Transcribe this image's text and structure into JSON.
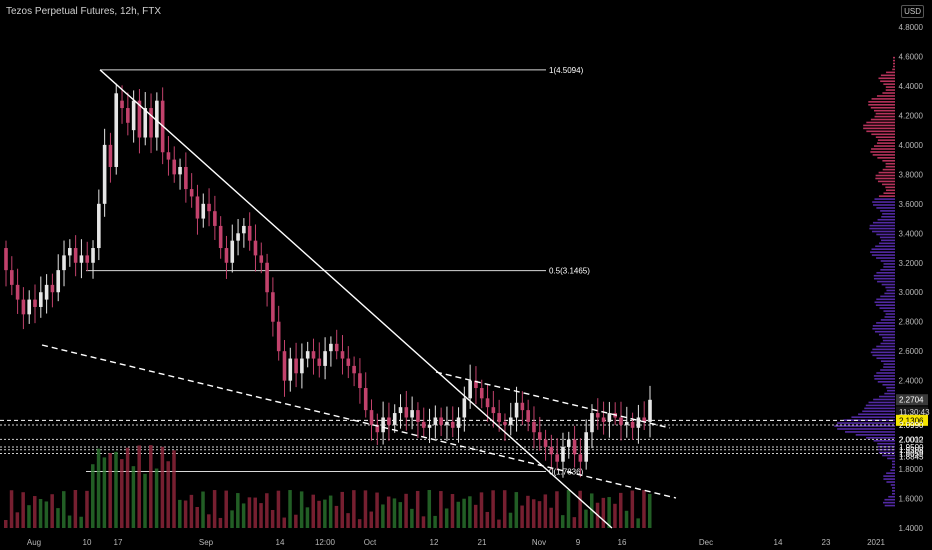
{
  "header": {
    "title": "Tezos Perpetual Futures, 12h, FTX",
    "currency": "USD"
  },
  "colors": {
    "background": "#000000",
    "up": "#e6e6e6",
    "down": "#c2426c",
    "fib": "#d8d8d8",
    "profile_upper": "#d63b6b",
    "profile_lower": "#6030c0",
    "highlight": "#f5e400"
  },
  "chart_data": {
    "type": "candlestick",
    "ylim": [
      1.4,
      4.8
    ],
    "y_ticks": [
      "4.8000",
      "4.6000",
      "4.4000",
      "4.2000",
      "4.0000",
      "3.8000",
      "3.6000",
      "3.4000",
      "3.2000",
      "3.0000",
      "2.8000",
      "2.6000",
      "2.4000",
      "2.2000",
      "2.0000",
      "1.8000",
      "1.6000",
      "1.4000"
    ],
    "x_ticks": [
      "Aug",
      "10",
      "17",
      "Sep",
      "14",
      "12:00",
      "Oct",
      "12",
      "21",
      "Nov",
      "9",
      "16",
      "Dec",
      "14",
      "23",
      "2021"
    ],
    "fib_levels": [
      {
        "label": "1(4.5094)",
        "value": 4.5094
      },
      {
        "label": "0.5(3.1465)",
        "value": 3.1465
      },
      {
        "label": "0(1.7836)",
        "value": 1.7836
      }
    ],
    "price_labels": [
      {
        "text": "2.2704",
        "value": 2.2704,
        "style": "gray"
      },
      {
        "text": "11:30:43",
        "value": 2.1875,
        "style": "dark"
      },
      {
        "text": "2.1306",
        "value": 2.1306,
        "style": "yellow"
      },
      {
        "text": "2.0990",
        "value": 2.099,
        "style": "plain"
      },
      {
        "text": "2.0012",
        "value": 2.0012,
        "style": "plain"
      },
      {
        "text": "1.9500",
        "value": 1.95,
        "style": "plain"
      },
      {
        "text": "1.9308",
        "value": 1.9308,
        "style": "plain"
      },
      {
        "text": "1.9059",
        "value": 1.9059,
        "style": "plain"
      },
      {
        "text": "1.8845",
        "value": 1.8845,
        "style": "plain"
      }
    ],
    "candles": [
      [
        3.3,
        3.15
      ],
      [
        3.15,
        3.05
      ],
      [
        3.05,
        2.95
      ],
      [
        2.95,
        2.85
      ],
      [
        2.85,
        2.95
      ],
      [
        2.95,
        2.9
      ],
      [
        2.9,
        3.0
      ],
      [
        2.95,
        3.05
      ],
      [
        3.05,
        3.0
      ],
      [
        3.0,
        3.15
      ],
      [
        3.15,
        3.25
      ],
      [
        3.25,
        3.3
      ],
      [
        3.3,
        3.2
      ],
      [
        3.2,
        3.25
      ],
      [
        3.25,
        3.2
      ],
      [
        3.2,
        3.3
      ],
      [
        3.3,
        3.6
      ],
      [
        3.6,
        4.0
      ],
      [
        4.0,
        3.85
      ],
      [
        3.85,
        4.35
      ],
      [
        4.3,
        4.25
      ],
      [
        4.25,
        4.15
      ],
      [
        4.1,
        4.3
      ],
      [
        4.3,
        4.05
      ],
      [
        4.05,
        4.25
      ],
      [
        4.25,
        4.05
      ],
      [
        4.05,
        4.3
      ],
      [
        4.3,
        3.95
      ],
      [
        3.95,
        3.9
      ],
      [
        3.9,
        3.8
      ],
      [
        3.8,
        3.85
      ],
      [
        3.85,
        3.7
      ],
      [
        3.7,
        3.65
      ],
      [
        3.65,
        3.5
      ],
      [
        3.5,
        3.6
      ],
      [
        3.6,
        3.55
      ],
      [
        3.55,
        3.45
      ],
      [
        3.45,
        3.3
      ],
      [
        3.3,
        3.2
      ],
      [
        3.2,
        3.35
      ],
      [
        3.35,
        3.4
      ],
      [
        3.4,
        3.45
      ],
      [
        3.45,
        3.35
      ],
      [
        3.35,
        3.25
      ],
      [
        3.25,
        3.2
      ],
      [
        3.2,
        3.0
      ],
      [
        3.0,
        2.8
      ],
      [
        2.8,
        2.6
      ],
      [
        2.6,
        2.4
      ],
      [
        2.4,
        2.55
      ],
      [
        2.55,
        2.45
      ],
      [
        2.45,
        2.55
      ],
      [
        2.55,
        2.6
      ],
      [
        2.6,
        2.55
      ],
      [
        2.55,
        2.5
      ],
      [
        2.5,
        2.6
      ],
      [
        2.6,
        2.65
      ],
      [
        2.65,
        2.6
      ],
      [
        2.6,
        2.55
      ],
      [
        2.55,
        2.5
      ],
      [
        2.5,
        2.45
      ],
      [
        2.45,
        2.35
      ],
      [
        2.35,
        2.2
      ],
      [
        2.2,
        2.1
      ],
      [
        2.1,
        2.05
      ],
      [
        2.05,
        2.15
      ],
      [
        2.15,
        2.1
      ],
      [
        2.1,
        2.18
      ],
      [
        2.18,
        2.22
      ],
      [
        2.22,
        2.15
      ],
      [
        2.15,
        2.2
      ],
      [
        2.2,
        2.12
      ],
      [
        2.12,
        2.08
      ],
      [
        2.08,
        2.1
      ],
      [
        2.1,
        2.15
      ],
      [
        2.15,
        2.1
      ],
      [
        2.1,
        2.12
      ],
      [
        2.12,
        2.08
      ],
      [
        2.08,
        2.15
      ],
      [
        2.15,
        2.28
      ],
      [
        2.28,
        2.4
      ],
      [
        2.4,
        2.35
      ],
      [
        2.35,
        2.28
      ],
      [
        2.28,
        2.22
      ],
      [
        2.22,
        2.18
      ],
      [
        2.18,
        2.12
      ],
      [
        2.12,
        2.1
      ],
      [
        2.1,
        2.15
      ],
      [
        2.15,
        2.25
      ],
      [
        2.25,
        2.2
      ],
      [
        2.2,
        2.12
      ],
      [
        2.12,
        2.05
      ],
      [
        2.05,
        2.0
      ],
      [
        2.0,
        1.95
      ],
      [
        1.95,
        1.9
      ],
      [
        1.9,
        1.85
      ],
      [
        1.85,
        1.95
      ],
      [
        1.95,
        2.0
      ],
      [
        2.0,
        1.9
      ],
      [
        1.9,
        1.85
      ],
      [
        1.85,
        2.05
      ],
      [
        2.05,
        2.18
      ],
      [
        2.18,
        2.15
      ],
      [
        2.15,
        2.12
      ],
      [
        2.12,
        2.18
      ],
      [
        2.18,
        2.15
      ],
      [
        2.15,
        2.1
      ],
      [
        2.1,
        2.12
      ],
      [
        2.12,
        2.08
      ],
      [
        2.08,
        2.15
      ],
      [
        2.15,
        2.12
      ],
      [
        2.12,
        2.27
      ]
    ]
  }
}
